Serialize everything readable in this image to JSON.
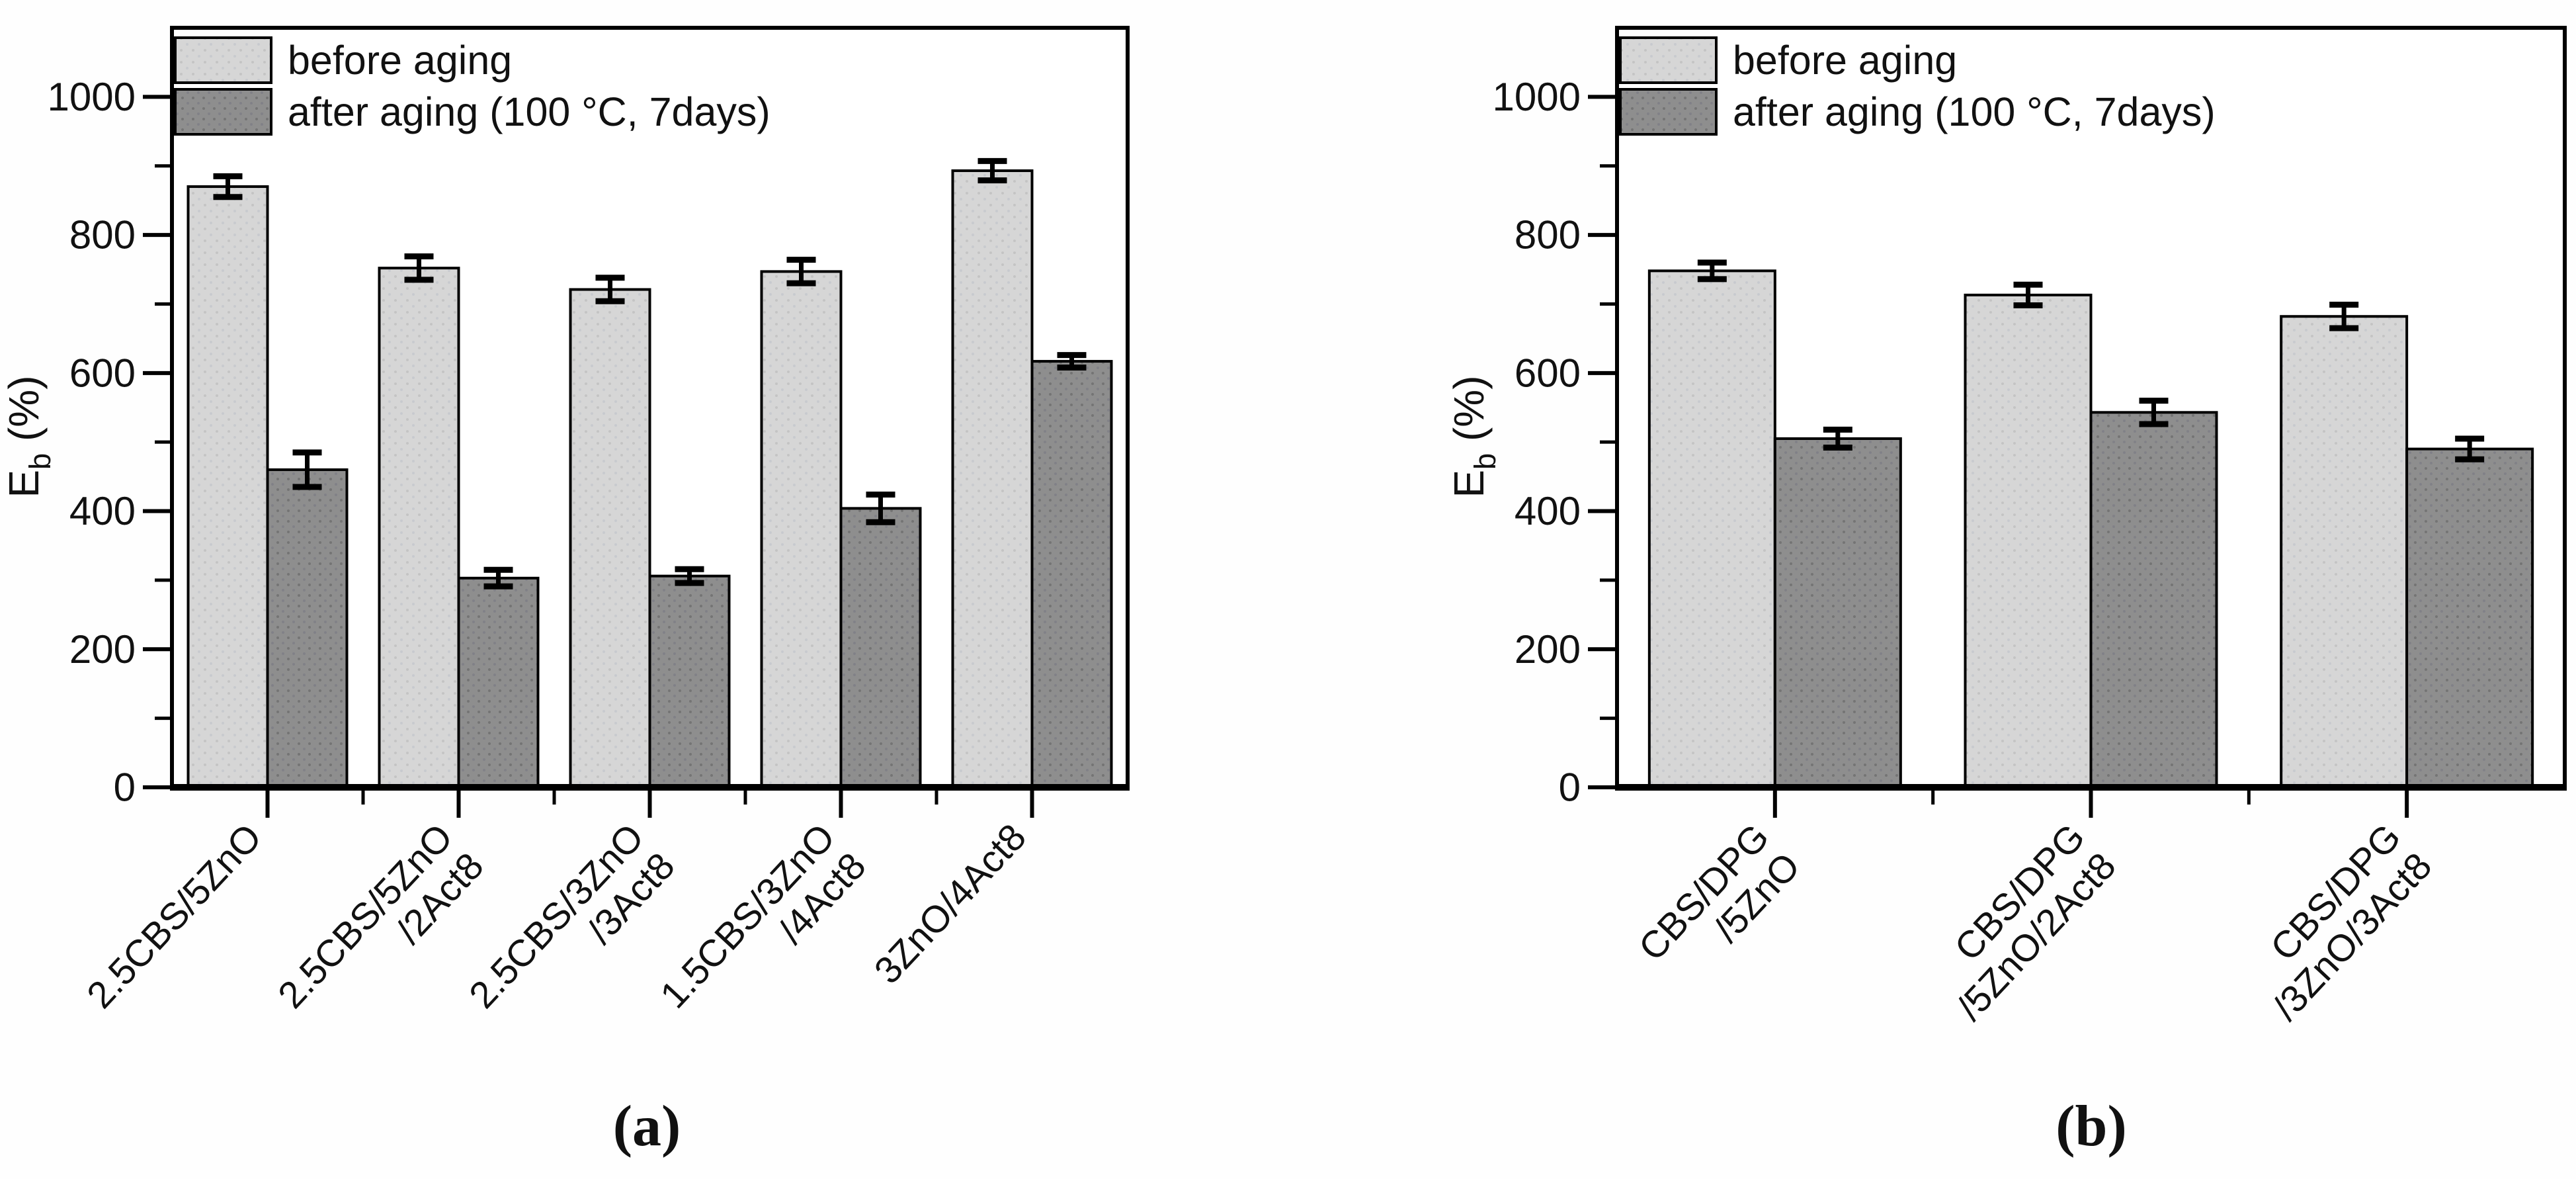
{
  "figure": {
    "background": "#fefefe",
    "captions": {
      "a": "(a)",
      "b": "(b)"
    }
  },
  "colors": {
    "before_fill": "#d6d6d6",
    "after_fill": "#8e8e8e",
    "outline": "#000000",
    "text": "#111111"
  },
  "legend": {
    "position": "top-left-inside",
    "entries": [
      {
        "label": "before aging",
        "series": "before"
      },
      {
        "label": "after aging (100 °C, 7days)",
        "series": "after"
      }
    ]
  },
  "chart_data": [
    {
      "id": "a",
      "type": "bar",
      "title": "",
      "caption": "(a)",
      "ylabel": "E_b (%)",
      "ylabel_parts": {
        "base": "E",
        "sub": "b",
        "rest": " (%)"
      },
      "xlabel": "",
      "ylim": [
        0,
        1100
      ],
      "ytick_major_step": 200,
      "ytick_minor_step": 100,
      "yticks": [
        0,
        200,
        400,
        600,
        800,
        1000
      ],
      "grid": false,
      "legend_position": "top-left",
      "categories": [
        [
          "2.5CBS/5ZnO"
        ],
        [
          "2.5CBS/5ZnO",
          "/2Act8"
        ],
        [
          "2.5CBS/3ZnO",
          "/3Act8"
        ],
        [
          "1.5CBS/3ZnO",
          "/4Act8"
        ],
        [
          "3ZnO/4Act8"
        ]
      ],
      "series": [
        {
          "name": "before aging",
          "values": [
            870,
            752,
            721,
            747,
            893
          ],
          "errors": [
            15,
            17,
            17,
            17,
            14
          ]
        },
        {
          "name": "after aging (100 °C, 7days)",
          "values": [
            460,
            303,
            306,
            404,
            617
          ],
          "errors": [
            25,
            12,
            10,
            20,
            9
          ]
        }
      ]
    },
    {
      "id": "b",
      "type": "bar",
      "title": "",
      "caption": "(b)",
      "ylabel": "E_b (%)",
      "ylabel_parts": {
        "base": "E",
        "sub": "b",
        "rest": " (%)"
      },
      "xlabel": "",
      "ylim": [
        0,
        1100
      ],
      "ytick_major_step": 200,
      "ytick_minor_step": 100,
      "yticks": [
        0,
        200,
        400,
        600,
        800,
        1000
      ],
      "grid": false,
      "legend_position": "top-left",
      "categories": [
        [
          "CBS/DPG",
          "/5ZnO"
        ],
        [
          "CBS/DPG",
          "/5ZnO/2Act8"
        ],
        [
          "CBS/DPG",
          "/3ZnO/3Act8"
        ]
      ],
      "series": [
        {
          "name": "before aging",
          "values": [
            748,
            713,
            682
          ],
          "errors": [
            12,
            15,
            17
          ]
        },
        {
          "name": "after aging (100 °C, 7days)",
          "values": [
            505,
            543,
            490
          ],
          "errors": [
            13,
            17,
            15
          ]
        }
      ]
    }
  ]
}
